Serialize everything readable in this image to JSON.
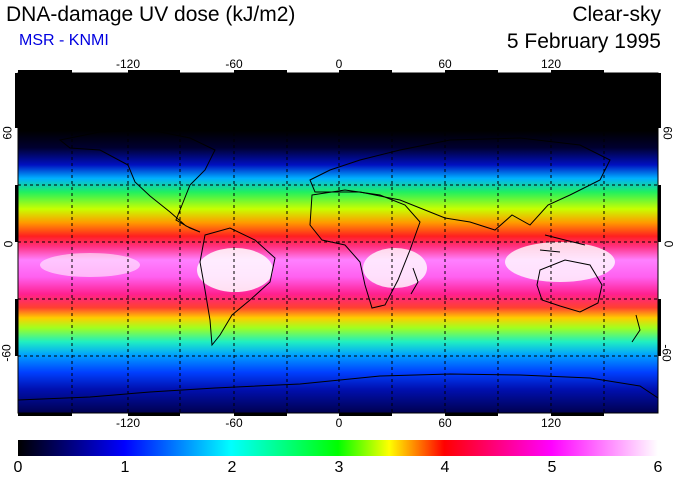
{
  "header": {
    "title": "DNA-damage UV dose (kJ/m2)",
    "subtitle": "MSR - KNMI",
    "sky_condition": "Clear-sky",
    "date": "5 February 1995"
  },
  "map": {
    "projection": "equirectangular",
    "longitude_labels": [
      "-120",
      "-60",
      "0",
      "60",
      "120"
    ],
    "latitude_labels_left": [
      "60",
      "0",
      "-60"
    ],
    "latitude_labels_right": [
      "60",
      "0",
      "-60"
    ],
    "gridlines": "dashed every 30 degrees"
  },
  "colorbar": {
    "min": 0,
    "max": 6,
    "tick_labels": [
      "0",
      "1",
      "2",
      "3",
      "4",
      "5",
      "6"
    ],
    "colors": [
      "#000000",
      "#0000ff",
      "#00ffff",
      "#00ff00",
      "#ffff00",
      "#ff0000",
      "#ff00ff",
      "#ffffff"
    ]
  }
}
